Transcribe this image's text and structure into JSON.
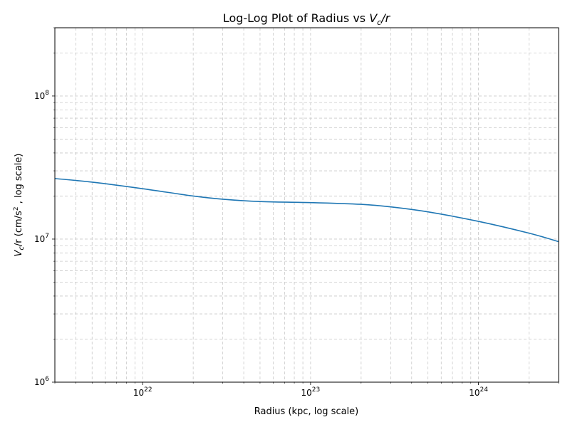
{
  "chart_data": {
    "type": "line",
    "title": {
      "prefix": "Log-Log Plot of Radius vs ",
      "var": "V",
      "sub": "c",
      "suffix": "/r"
    },
    "xlabel": "Radius (kpc, log scale)",
    "ylabel": {
      "var": "V",
      "sub": "c",
      "mid": "/r (cm/s",
      "sup": "2",
      "suffix": " , log scale)"
    },
    "x_scale": "log",
    "y_scale": "log",
    "xlim": [
      3e+21,
      3e+24
    ],
    "ylim": [
      1000000.0,
      300000000.0
    ],
    "x_ticks": [
      {
        "value": 1e+22,
        "base": "10",
        "exp": "22"
      },
      {
        "value": 1e+23,
        "base": "10",
        "exp": "23"
      },
      {
        "value": 1e+24,
        "base": "10",
        "exp": "24"
      }
    ],
    "y_ticks": [
      {
        "value": 1000000.0,
        "base": "10",
        "exp": "6"
      },
      {
        "value": 10000000.0,
        "base": "10",
        "exp": "7"
      },
      {
        "value": 100000000.0,
        "base": "10",
        "exp": "8"
      }
    ],
    "grid": true,
    "grid_style": "dashed",
    "line_color": "#1f77b4",
    "series": [
      {
        "x": [
          3e+21,
          5e+21,
          1e+22,
          2e+22,
          3e+22,
          5e+22,
          1e+23,
          2e+23,
          3e+23,
          5e+23,
          1e+24,
          2e+24,
          3e+24
        ],
        "y": [
          26500000.0,
          25000000.0,
          22500000.0,
          20000000.0,
          19000000.0,
          18300000.0,
          18000000.0,
          17500000.0,
          16800000.0,
          15500000.0,
          13300000.0,
          11000000.0,
          9600000.0
        ]
      }
    ]
  }
}
